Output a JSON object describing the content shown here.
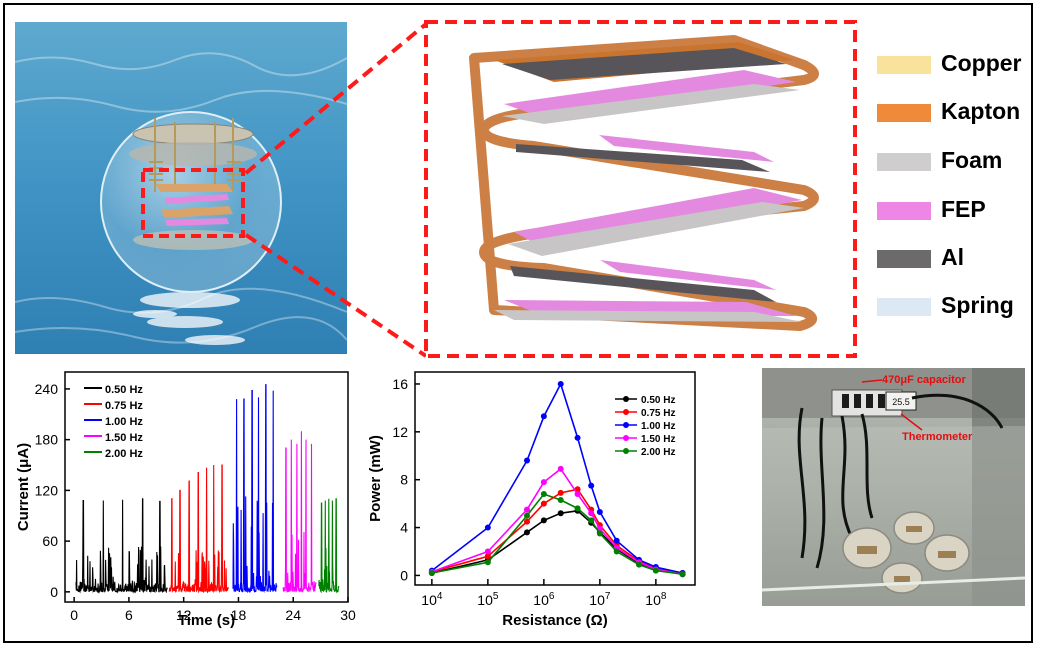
{
  "legend_layers": [
    {
      "label": "Copper",
      "color": "#f9e29c"
    },
    {
      "label": "Kapton",
      "color": "#ee8a3a"
    },
    {
      "label": "Foam",
      "color": "#cfcdcd"
    },
    {
      "label": "FEP",
      "color": "#ee86e6"
    },
    {
      "label": "Al",
      "color": "#6d6a6b"
    },
    {
      "label": "Spring",
      "color": "#dce8f4"
    }
  ],
  "photo": {
    "capacitor_label": "470μF capacitor",
    "thermometer_label": "Thermometer",
    "thermometer_display": "25.5"
  },
  "chart_data": [
    {
      "type": "line",
      "xlabel": "Time (s)",
      "ylabel": "Current (μA)",
      "xlim": [
        -1,
        30
      ],
      "ylim": [
        -12,
        260
      ],
      "xticks": [
        "0",
        "6",
        "12",
        "18",
        "24",
        "30"
      ],
      "yticks": [
        "0",
        "60",
        "120",
        "180",
        "240"
      ],
      "legend_position": "top-left",
      "series": [
        {
          "name": "0.50 Hz",
          "color": "#000000",
          "t_start": 0.2,
          "t_end": 10.2,
          "peak_times": [
            1.0,
            3.2,
            5.3,
            7.5,
            9.4
          ],
          "peak_values": [
            108,
            108,
            109,
            110,
            107
          ]
        },
        {
          "name": "0.75 Hz",
          "color": "#ff0000",
          "t_start": 10.4,
          "t_end": 16.9,
          "peak_times": [
            10.7,
            11.6,
            12.6,
            13.6,
            14.5,
            15.3,
            16.2
          ],
          "peak_values": [
            110,
            120,
            131,
            141,
            147,
            150,
            150
          ]
        },
        {
          "name": "1.00 Hz",
          "color": "#0000ff",
          "t_start": 17.4,
          "t_end": 22.2,
          "peak_times": [
            17.8,
            18.6,
            19.5,
            20.2,
            21.0,
            21.8
          ],
          "peak_values": [
            228,
            228,
            238,
            230,
            245,
            238
          ]
        },
        {
          "name": "1.50 Hz",
          "color": "#ff00ff",
          "t_start": 22.9,
          "t_end": 26.5,
          "peak_times": [
            23.2,
            23.8,
            24.4,
            24.9,
            25.4,
            26.0
          ],
          "peak_values": [
            170,
            180,
            175,
            190,
            180,
            175
          ]
        },
        {
          "name": "2.00 Hz",
          "color": "#008000",
          "t_start": 26.8,
          "t_end": 29.0,
          "peak_times": [
            27.1,
            27.5,
            27.9,
            28.3,
            28.7
          ],
          "peak_values": [
            105,
            108,
            110,
            108,
            110
          ]
        }
      ]
    },
    {
      "type": "line",
      "xlabel": "Resistance (Ω)",
      "ylabel": "Power (mW)",
      "xscale": "log",
      "xlim": [
        5000,
        500000000
      ],
      "ylim": [
        -0.8,
        17
      ],
      "xticks": [
        "10^4",
        "10^5",
        "10^6",
        "10^7",
        "10^8"
      ],
      "yticks": [
        "0",
        "4",
        "8",
        "12",
        "16"
      ],
      "legend_position": "top-right",
      "series": [
        {
          "name": "0.50 Hz",
          "color": "#000000",
          "x": [
            10000,
            100000,
            500000,
            1000000,
            2000000,
            4000000,
            7000000,
            10000000,
            20000000,
            50000000,
            100000000,
            300000000
          ],
          "y": [
            0.2,
            1.3,
            3.6,
            4.6,
            5.2,
            5.4,
            4.4,
            3.6,
            2.2,
            1.0,
            0.5,
            0.1
          ]
        },
        {
          "name": "0.75 Hz",
          "color": "#ff0000",
          "x": [
            10000,
            100000,
            500000,
            1000000,
            2000000,
            4000000,
            7000000,
            10000000,
            20000000,
            50000000,
            100000000,
            300000000
          ],
          "y": [
            0.3,
            1.6,
            4.5,
            6.0,
            6.9,
            7.2,
            5.5,
            4.2,
            2.5,
            1.2,
            0.6,
            0.2
          ]
        },
        {
          "name": "1.00 Hz",
          "color": "#0000ff",
          "x": [
            10000,
            100000,
            500000,
            1000000,
            2000000,
            4000000,
            7000000,
            10000000,
            20000000,
            50000000,
            100000000,
            300000000
          ],
          "y": [
            0.4,
            4.0,
            9.6,
            13.3,
            16.0,
            11.5,
            7.5,
            5.3,
            2.9,
            1.3,
            0.7,
            0.2
          ]
        },
        {
          "name": "1.50 Hz",
          "color": "#ff00ff",
          "x": [
            10000,
            100000,
            500000,
            1000000,
            2000000,
            4000000,
            7000000,
            10000000,
            20000000,
            50000000,
            100000000,
            300000000
          ],
          "y": [
            0.3,
            2.0,
            5.5,
            7.8,
            8.9,
            6.8,
            5.2,
            3.9,
            2.3,
            1.1,
            0.5,
            0.1
          ]
        },
        {
          "name": "2.00 Hz",
          "color": "#008000",
          "x": [
            10000,
            100000,
            500000,
            1000000,
            2000000,
            4000000,
            7000000,
            10000000,
            20000000,
            50000000,
            100000000,
            300000000
          ],
          "y": [
            0.2,
            1.1,
            5.0,
            6.8,
            6.3,
            5.6,
            4.6,
            3.5,
            2.0,
            0.9,
            0.4,
            0.1
          ]
        }
      ]
    }
  ]
}
